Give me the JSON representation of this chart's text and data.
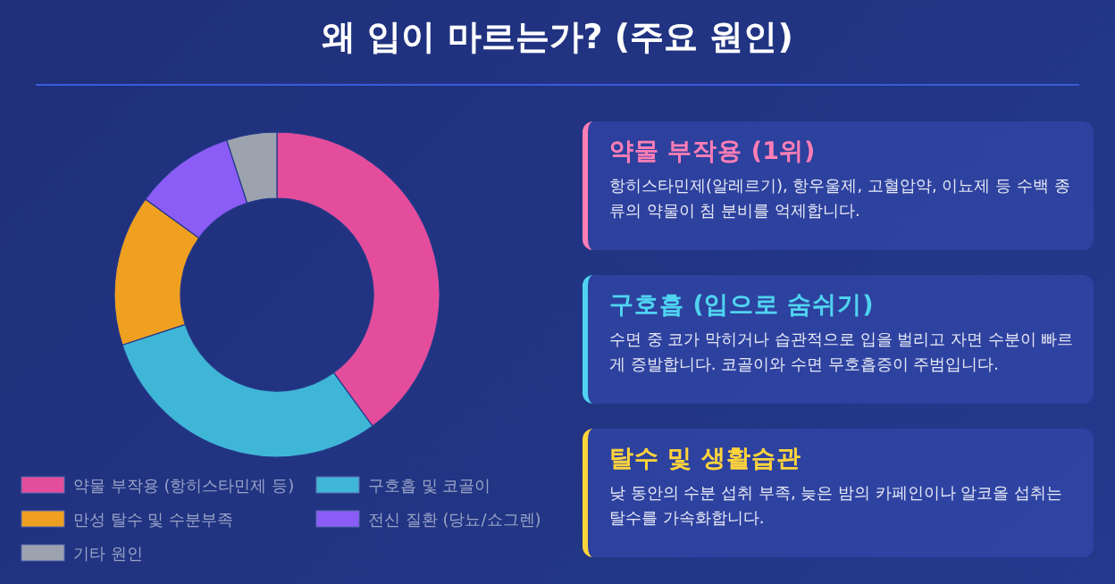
{
  "chart_data": [
    {
      "type": "donut",
      "title": "왜 입이 마르는가? (주요 원인)",
      "categories": [
        "약물 부작용 (항히스타민제 등)",
        "구호흡 및 코골이",
        "만성 탈수 및 수분부족",
        "전신 질환 (당뇨/쇼그렌)",
        "기타 원인"
      ],
      "values": [
        40,
        30,
        15,
        10,
        5
      ],
      "colors": [
        "#e44d9c",
        "#40b6d6",
        "#f0a020",
        "#8b5cf6",
        "#9ca3af"
      ],
      "legend": "bottom"
    },
    {
      "type": "other",
      "annotations": [
        "약물 부작용 (1위)",
        "항히스타민제(알레르기), 항우울제, 고혈압약, 이뇨제 등 수백 종류의 약물이 침 분비를 억제합니다.",
        "구호흡 (입으로 숨쉬기)",
        "수면 중 코가 막히거나 습관적으로 입을 벌리고 자면 수분이 빠르게 증발합니다. 코골이와 수면 무호흡증이 주범입니다.",
        "탈수 및 생활습관",
        "낮 동안의 수분 섭취 부족, 늦은 밤의 카페인이나 알코올 섭취는 탈수를 가속화합니다."
      ]
    }
  ]
}
